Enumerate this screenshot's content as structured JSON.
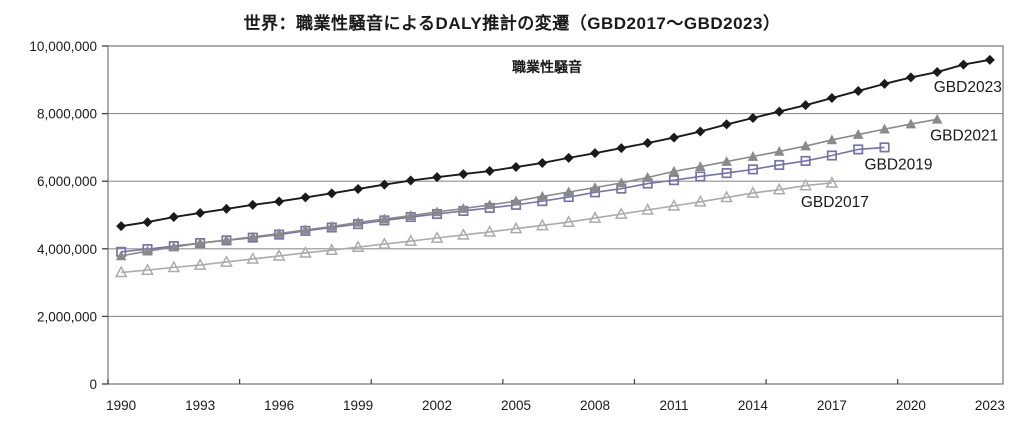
{
  "chart_data": {
    "type": "line",
    "title": "世界：職業性騒音によるDALY推計の変遷（GBD2017～GBD2023）",
    "annotation": "職業性騒音",
    "xlabel": "",
    "ylabel": "",
    "x_range": [
      1990,
      2023
    ],
    "ylim": [
      0,
      10000000
    ],
    "grid": "horizontal",
    "legend_position": "inline-labels-at-line-ends",
    "yticks": [
      {
        "v": 0,
        "label": "0"
      },
      {
        "v": 2000000,
        "label": "2,000,000"
      },
      {
        "v": 4000000,
        "label": "4,000,000"
      },
      {
        "v": 6000000,
        "label": "6,000,000"
      },
      {
        "v": 8000000,
        "label": "8,000,000"
      },
      {
        "v": 10000000,
        "label": "10,000,000"
      }
    ],
    "xticks": [
      1990,
      1993,
      1996,
      1999,
      2002,
      2005,
      2008,
      2011,
      2014,
      2017,
      2020,
      2023
    ],
    "series": [
      {
        "name": "GBD2023",
        "color": "#1a1a1a",
        "marker": "diamond-filled",
        "start_year": 1990,
        "values": [
          4670000,
          4790000,
          4940000,
          5060000,
          5180000,
          5300000,
          5400000,
          5520000,
          5640000,
          5770000,
          5900000,
          6020000,
          6120000,
          6210000,
          6300000,
          6420000,
          6540000,
          6690000,
          6830000,
          6980000,
          7130000,
          7290000,
          7470000,
          7680000,
          7870000,
          8060000,
          8250000,
          8460000,
          8670000,
          8880000,
          9070000,
          9230000,
          9450000,
          9590000
        ]
      },
      {
        "name": "GBD2021",
        "color": "#8a8a8a",
        "marker": "triangle-filled",
        "start_year": 1990,
        "values": [
          3790000,
          3930000,
          4050000,
          4170000,
          4260000,
          4350000,
          4450000,
          4560000,
          4660000,
          4780000,
          4880000,
          4980000,
          5090000,
          5190000,
          5300000,
          5410000,
          5550000,
          5680000,
          5810000,
          5950000,
          6110000,
          6290000,
          6430000,
          6580000,
          6730000,
          6880000,
          7040000,
          7220000,
          7380000,
          7540000,
          7690000,
          7830000
        ]
      },
      {
        "name": "GBD2019",
        "color": "#7373ae",
        "marker": "square-open",
        "start_year": 1990,
        "values": [
          3910000,
          3990000,
          4080000,
          4170000,
          4250000,
          4330000,
          4420000,
          4530000,
          4630000,
          4730000,
          4840000,
          4940000,
          5030000,
          5120000,
          5210000,
          5300000,
          5410000,
          5530000,
          5670000,
          5780000,
          5930000,
          6030000,
          6140000,
          6240000,
          6350000,
          6480000,
          6600000,
          6760000,
          6940000,
          7000000
        ]
      },
      {
        "name": "GBD2017",
        "color": "#ababab",
        "marker": "triangle-open",
        "start_year": 1990,
        "values": [
          3300000,
          3370000,
          3450000,
          3520000,
          3610000,
          3700000,
          3790000,
          3880000,
          3960000,
          4050000,
          4140000,
          4230000,
          4320000,
          4410000,
          4500000,
          4600000,
          4690000,
          4790000,
          4910000,
          5030000,
          5150000,
          5270000,
          5390000,
          5520000,
          5650000,
          5750000,
          5870000,
          5950000
        ]
      }
    ],
    "colors": {
      "plot_border": "#808080",
      "gridline": "#909090",
      "tick": "#404040",
      "text": "#1a1a1a",
      "background": "#ffffff"
    }
  }
}
